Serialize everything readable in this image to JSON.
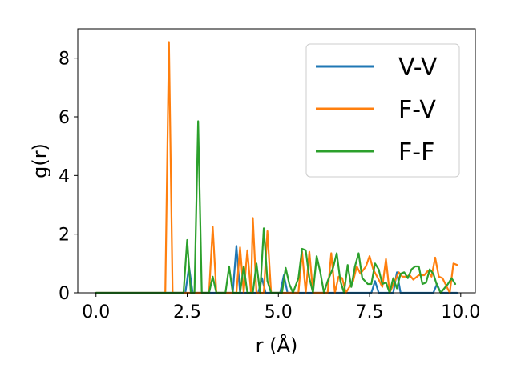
{
  "chart_data": {
    "type": "line",
    "title": "",
    "xlabel": "r (Å)",
    "ylabel": "g(r)",
    "xlim": [
      -0.5,
      10.4
    ],
    "ylim": [
      0,
      9
    ],
    "xticks": [
      0.0,
      2.5,
      5.0,
      7.5,
      10.0
    ],
    "xtick_labels": [
      "0.0",
      "2.5",
      "5.0",
      "7.5",
      "10.0"
    ],
    "yticks": [
      0,
      2,
      4,
      6,
      8
    ],
    "ytick_labels": [
      "0",
      "2",
      "4",
      "6",
      "8"
    ],
    "legend_position": "top-right",
    "series": [
      {
        "name": "V-V",
        "color": "#1f77b4",
        "points": [
          [
            0,
            0
          ],
          [
            2.35,
            0
          ],
          [
            2.45,
            0
          ],
          [
            2.55,
            0.9
          ],
          [
            2.65,
            0
          ],
          [
            2.75,
            0
          ],
          [
            3.75,
            0
          ],
          [
            3.85,
            1.6
          ],
          [
            3.95,
            0
          ],
          [
            4.45,
            0
          ],
          [
            4.55,
            0.5
          ],
          [
            4.65,
            0
          ],
          [
            5.05,
            0
          ],
          [
            5.15,
            0.6
          ],
          [
            5.25,
            0
          ],
          [
            7.55,
            0
          ],
          [
            7.65,
            0.4
          ],
          [
            7.75,
            0
          ],
          [
            8.15,
            0
          ],
          [
            8.25,
            0.7
          ],
          [
            8.35,
            0
          ],
          [
            9.25,
            0
          ],
          [
            9.35,
            0.3
          ],
          [
            9.45,
            0
          ],
          [
            9.9,
            0
          ]
        ]
      },
      {
        "name": "F-V",
        "color": "#ff7f0e",
        "points": [
          [
            0,
            0
          ],
          [
            1.9,
            0
          ],
          [
            2.0,
            8.55
          ],
          [
            2.1,
            0
          ],
          [
            3.1,
            0
          ],
          [
            3.2,
            2.25
          ],
          [
            3.3,
            0
          ],
          [
            3.85,
            0
          ],
          [
            3.95,
            1.55
          ],
          [
            4.05,
            0
          ],
          [
            4.15,
            1.45
          ],
          [
            4.25,
            0
          ],
          [
            4.3,
            2.55
          ],
          [
            4.4,
            0
          ],
          [
            4.6,
            0
          ],
          [
            4.7,
            2.1
          ],
          [
            4.8,
            0
          ],
          [
            5.55,
            0
          ],
          [
            5.65,
            1.4
          ],
          [
            5.75,
            0
          ],
          [
            5.85,
            1.4
          ],
          [
            5.95,
            0
          ],
          [
            6.35,
            0
          ],
          [
            6.45,
            1.35
          ],
          [
            6.55,
            0
          ],
          [
            6.65,
            0.55
          ],
          [
            6.75,
            0.5
          ],
          [
            6.85,
            0
          ],
          [
            7.05,
            0.4
          ],
          [
            7.15,
            0.9
          ],
          [
            7.25,
            0.65
          ],
          [
            7.4,
            0.9
          ],
          [
            7.5,
            1.25
          ],
          [
            7.6,
            0.8
          ],
          [
            7.75,
            0.45
          ],
          [
            7.85,
            0.2
          ],
          [
            7.95,
            1.15
          ],
          [
            8.05,
            0
          ],
          [
            8.3,
            0.7
          ],
          [
            8.4,
            0.55
          ],
          [
            8.5,
            0.55
          ],
          [
            8.6,
            0.6
          ],
          [
            8.7,
            0.45
          ],
          [
            8.85,
            0.6
          ],
          [
            9.0,
            0.6
          ],
          [
            9.1,
            0.75
          ],
          [
            9.2,
            0.55
          ],
          [
            9.3,
            1.2
          ],
          [
            9.4,
            0.55
          ],
          [
            9.5,
            0.5
          ],
          [
            9.6,
            0.25
          ],
          [
            9.7,
            0
          ],
          [
            9.8,
            1.0
          ],
          [
            9.9,
            0.95
          ]
        ]
      },
      {
        "name": "F-F",
        "color": "#2ca02c",
        "points": [
          [
            0,
            0
          ],
          [
            2.4,
            0
          ],
          [
            2.5,
            1.8
          ],
          [
            2.6,
            0
          ],
          [
            2.7,
            0
          ],
          [
            2.8,
            5.85
          ],
          [
            2.9,
            0
          ],
          [
            3.1,
            0
          ],
          [
            3.2,
            0.55
          ],
          [
            3.3,
            0
          ],
          [
            3.55,
            0
          ],
          [
            3.65,
            0.9
          ],
          [
            3.75,
            0
          ],
          [
            3.95,
            0
          ],
          [
            4.05,
            0.9
          ],
          [
            4.15,
            0
          ],
          [
            4.3,
            0
          ],
          [
            4.4,
            1.0
          ],
          [
            4.5,
            0
          ],
          [
            4.6,
            2.2
          ],
          [
            4.7,
            0.4
          ],
          [
            4.8,
            0
          ],
          [
            5.1,
            0
          ],
          [
            5.2,
            0.85
          ],
          [
            5.3,
            0.3
          ],
          [
            5.4,
            0
          ],
          [
            5.55,
            0.5
          ],
          [
            5.65,
            1.5
          ],
          [
            5.75,
            1.45
          ],
          [
            5.85,
            0.5
          ],
          [
            5.95,
            0
          ],
          [
            6.05,
            1.25
          ],
          [
            6.15,
            0.7
          ],
          [
            6.25,
            0
          ],
          [
            6.35,
            0.4
          ],
          [
            6.5,
            0.85
          ],
          [
            6.6,
            1.35
          ],
          [
            6.7,
            0.4
          ],
          [
            6.8,
            0
          ],
          [
            6.9,
            0.95
          ],
          [
            7.0,
            0.2
          ],
          [
            7.1,
            0.9
          ],
          [
            7.2,
            1.35
          ],
          [
            7.3,
            0.5
          ],
          [
            7.45,
            0.3
          ],
          [
            7.55,
            0.3
          ],
          [
            7.65,
            1.0
          ],
          [
            7.75,
            0.8
          ],
          [
            7.85,
            0.3
          ],
          [
            7.95,
            0.35
          ],
          [
            8.05,
            0
          ],
          [
            8.15,
            0.5
          ],
          [
            8.25,
            0.15
          ],
          [
            8.35,
            0.65
          ],
          [
            8.45,
            0.7
          ],
          [
            8.55,
            0.5
          ],
          [
            8.65,
            0.8
          ],
          [
            8.75,
            0.9
          ],
          [
            8.85,
            0.9
          ],
          [
            8.95,
            0.3
          ],
          [
            9.05,
            0.35
          ],
          [
            9.15,
            0.8
          ],
          [
            9.25,
            0.65
          ],
          [
            9.35,
            0.25
          ],
          [
            9.45,
            0
          ],
          [
            9.55,
            0.15
          ],
          [
            9.65,
            0.3
          ],
          [
            9.75,
            0.5
          ],
          [
            9.85,
            0.3
          ]
        ]
      }
    ]
  }
}
